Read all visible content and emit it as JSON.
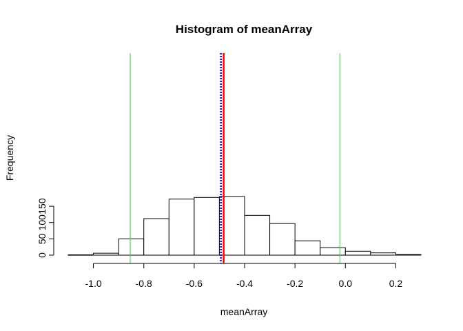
{
  "chart_data": {
    "type": "histogram",
    "title": "Histogram of meanArray",
    "xlabel": "meanArray",
    "ylabel": "Frequency",
    "bins": [
      {
        "start": -1.1,
        "end": -1.0,
        "count": 1
      },
      {
        "start": -1.0,
        "end": -0.9,
        "count": 6
      },
      {
        "start": -0.9,
        "end": -0.8,
        "count": 50
      },
      {
        "start": -0.8,
        "end": -0.7,
        "count": 112
      },
      {
        "start": -0.7,
        "end": -0.6,
        "count": 172
      },
      {
        "start": -0.6,
        "end": -0.5,
        "count": 177
      },
      {
        "start": -0.5,
        "end": -0.4,
        "count": 180
      },
      {
        "start": -0.4,
        "end": -0.3,
        "count": 122
      },
      {
        "start": -0.3,
        "end": -0.2,
        "count": 97
      },
      {
        "start": -0.2,
        "end": -0.1,
        "count": 44
      },
      {
        "start": -0.1,
        "end": 0.0,
        "count": 23
      },
      {
        "start": 0.0,
        "end": 0.1,
        "count": 12
      },
      {
        "start": 0.1,
        "end": 0.2,
        "count": 7
      },
      {
        "start": 0.2,
        "end": 0.3,
        "count": 2
      }
    ],
    "xlim": [
      -1.1,
      0.3
    ],
    "ylim": [
      0,
      185
    ],
    "xticks": [
      -1.0,
      -0.8,
      -0.6,
      -0.4,
      -0.2,
      0.0,
      0.2
    ],
    "xtick_labels": [
      "-1.0",
      "-0.8",
      "-0.6",
      "-0.4",
      "-0.2",
      "0.0",
      "0.2"
    ],
    "yticks": [
      0,
      50,
      100,
      150
    ],
    "ytick_labels": [
      "0",
      "50",
      "100",
      "150"
    ],
    "vlines": [
      {
        "x": -0.854,
        "color": "#33cc33",
        "style": "solid",
        "width": 1
      },
      {
        "x": -0.022,
        "color": "#33cc33",
        "style": "solid",
        "width": 1
      },
      {
        "x": -0.494,
        "color": "#0000ff",
        "style": "dotted",
        "width": 2.5
      },
      {
        "x": -0.483,
        "color": "#ff0000",
        "style": "solid",
        "width": 2.5
      }
    ],
    "grid": false,
    "bar_fill": "#ffffff",
    "bar_stroke": "#000000"
  }
}
